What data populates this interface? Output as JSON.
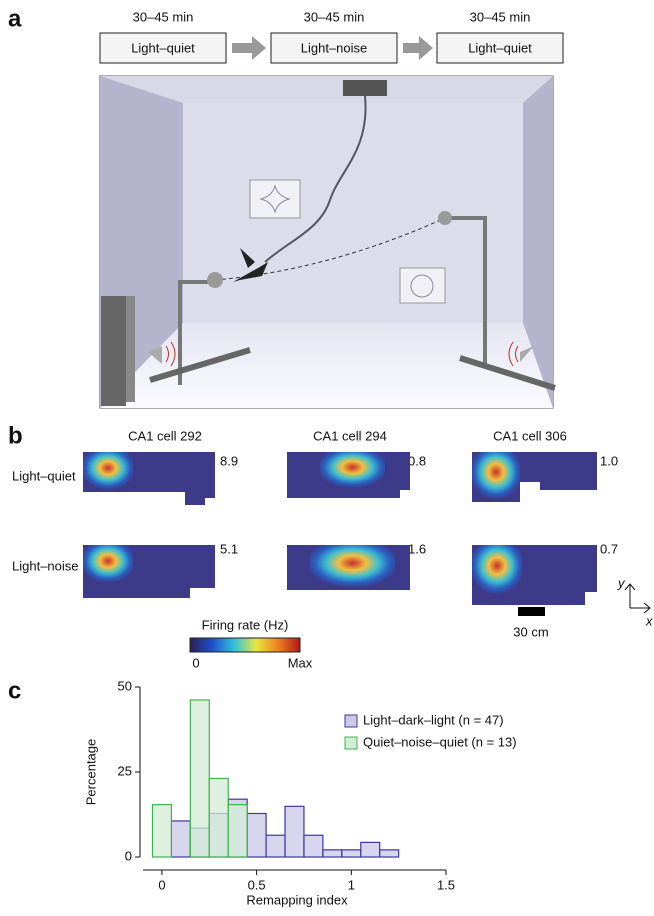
{
  "panel_a": {
    "label": "a",
    "conditions": [
      {
        "duration": "30–45 min",
        "name": "Light–quiet"
      },
      {
        "duration": "30–45 min",
        "name": "Light–noise"
      },
      {
        "duration": "30–45 min",
        "name": "Light–quiet"
      }
    ]
  },
  "panel_b": {
    "label": "b",
    "cells": [
      "CA1 cell 292",
      "CA1 cell 294",
      "CA1 cell 306"
    ],
    "rows": [
      {
        "name": "Light–quiet",
        "peak_rates": [
          "8.9",
          "0.8",
          "1.0"
        ]
      },
      {
        "name": "Light–noise",
        "peak_rates": [
          "5.1",
          "1.6",
          "0.7"
        ]
      }
    ],
    "colorbar": {
      "title": "Firing rate (Hz)",
      "min": "0",
      "max": "Max"
    },
    "scale_bar": "30 cm",
    "axes": {
      "y": "y",
      "x": "x"
    }
  },
  "panel_c": {
    "label": "c"
  },
  "chart_data": {
    "type": "histogram",
    "xlabel": "Remapping index",
    "ylabel": "Percentage",
    "xlim": [
      -0.1,
      1.5
    ],
    "xticks": [
      0,
      0.5,
      1,
      1.5
    ],
    "ylim": [
      0,
      50
    ],
    "yticks": [
      0,
      25,
      50
    ],
    "legend": "upper right",
    "series": [
      {
        "name": "Light–dark–light (n = 47)",
        "color": "#3d37a3",
        "fill": "#cbc8e8",
        "bins": [
          0.05,
          0.15,
          0.25,
          0.35,
          0.45,
          0.55,
          0.65,
          0.75,
          0.85,
          0.95,
          1.05,
          1.15,
          1.25
        ],
        "values": [
          10.6,
          8.5,
          12.8,
          17.0,
          12.8,
          6.4,
          14.9,
          6.4,
          2.1,
          2.1,
          4.3,
          2.1
        ]
      },
      {
        "name": "Quiet–noise–quiet (n = 13)",
        "color": "#3fb34f",
        "fill": "#d3ecd5",
        "bins": [
          -0.05,
          0.05,
          0.15,
          0.25,
          0.35,
          0.45
        ],
        "values": [
          15.4,
          0,
          46.2,
          23.1,
          15.4
        ]
      }
    ]
  }
}
